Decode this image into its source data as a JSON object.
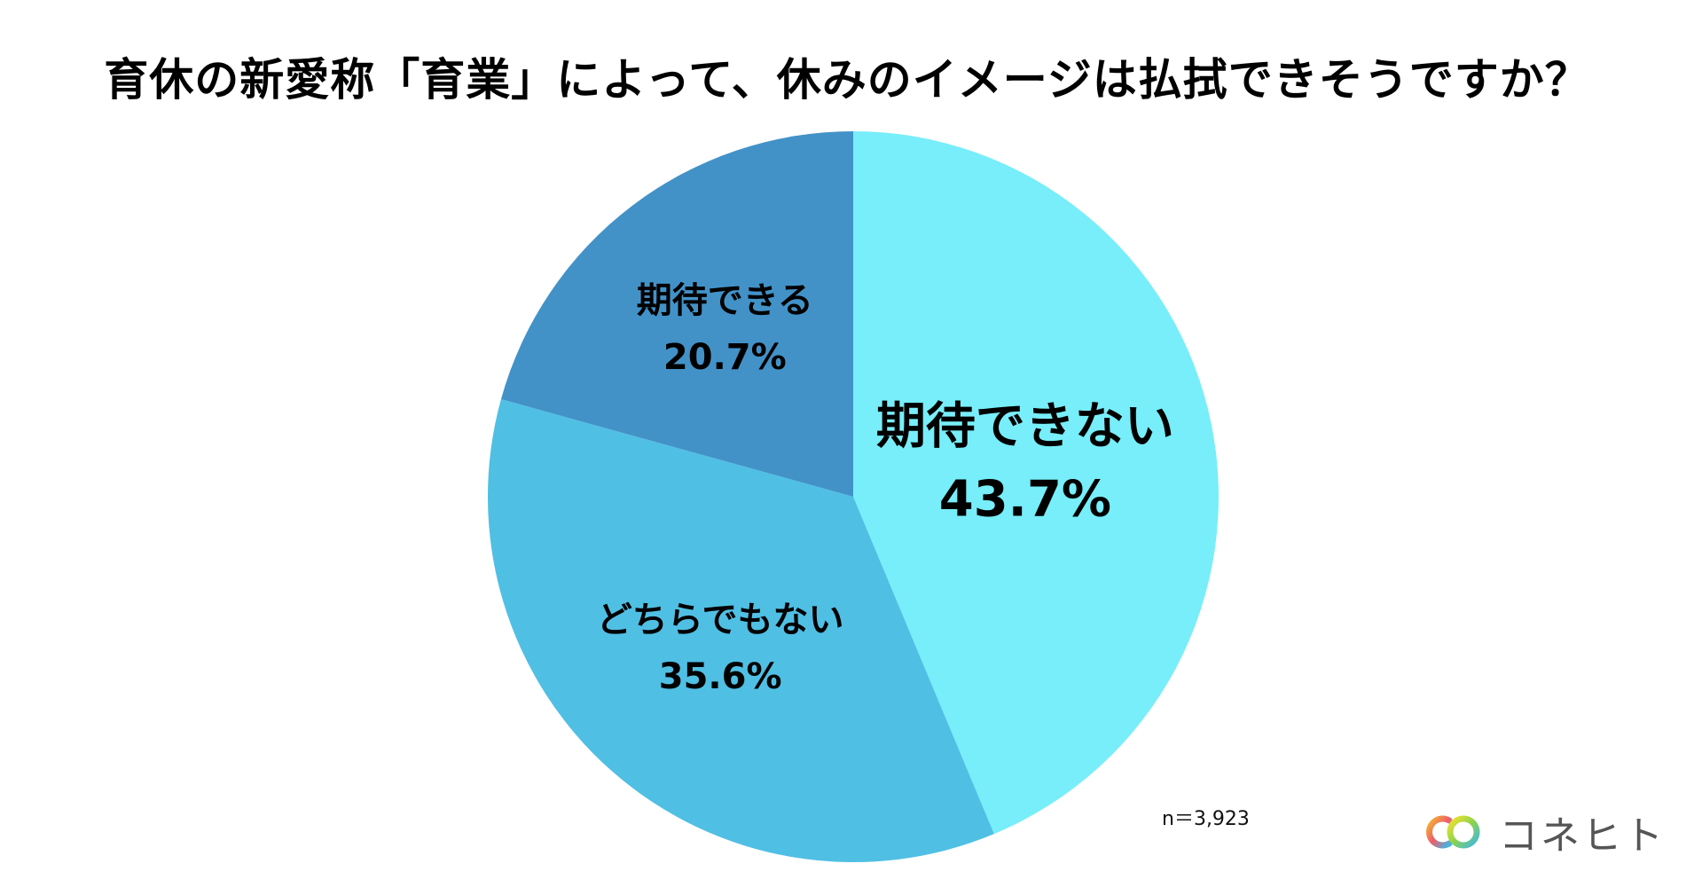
{
  "title": "育休の新愛称「育業」によって、休みのイメージは払拭できそうですか？",
  "sample_size": "n＝3,923",
  "brand": {
    "name": "コネヒト",
    "logo_icon": "connehito-logo-icon"
  },
  "chart_data": {
    "type": "pie",
    "title": "育休の新愛称「育業」によって、休みのイメージは払拭できそうですか？",
    "start_angle": "12 o'clock",
    "direction": "clockwise",
    "slices": [
      {
        "label": "期待できない",
        "value": 43.7,
        "value_label": "43.7%",
        "color": "#77EEF9"
      },
      {
        "label": "どちらでもない",
        "value": 35.6,
        "value_label": "35.6%",
        "color": "#50BFE4"
      },
      {
        "label": "期待できる",
        "value": 20.7,
        "value_label": "20.7%",
        "color": "#4292C8"
      }
    ]
  }
}
